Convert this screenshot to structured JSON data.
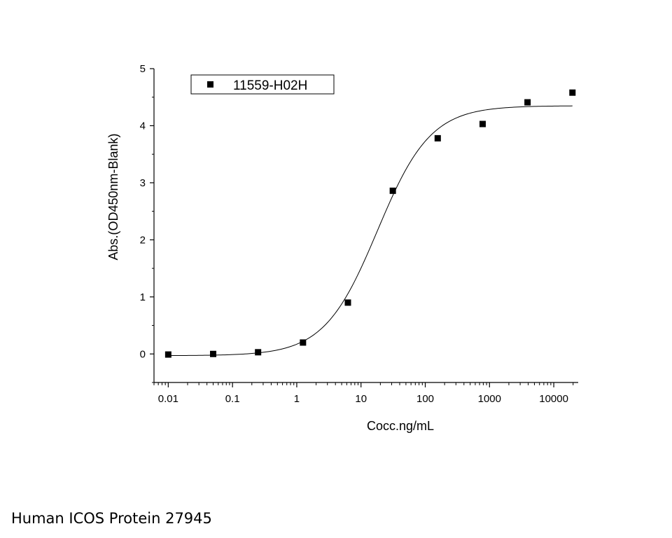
{
  "caption": "Human ICOS Protein 27945",
  "chart_data": {
    "type": "scatter",
    "xlabel": "Cocc.ng/mL",
    "ylabel": "Abs.(OD450nm-Blank)",
    "xscale": "log",
    "xlim": [
      0.006,
      24000
    ],
    "ylim": [
      -0.5,
      5
    ],
    "x_ticks": [
      0.01,
      0.1,
      1,
      10,
      100,
      1000,
      10000
    ],
    "x_tick_labels": [
      "0.01",
      "0.1",
      "1",
      "10",
      "100",
      "1000",
      "10000"
    ],
    "y_ticks": [
      0,
      1,
      2,
      3,
      4,
      5
    ],
    "y_tick_labels": [
      "0",
      "1",
      "2",
      "3",
      "4",
      "5"
    ],
    "grid": false,
    "legend_position": "top-left",
    "series": [
      {
        "name": "11559-H02H",
        "marker": "square",
        "color": "#000000",
        "x": [
          0.01,
          0.05,
          0.25,
          1.25,
          6.25,
          31.25,
          156.25,
          781.25,
          3906.25,
          19531.25
        ],
        "y": [
          -0.01,
          0.0,
          0.03,
          0.2,
          0.9,
          2.86,
          3.78,
          4.03,
          4.41,
          4.58
        ]
      }
    ],
    "fit": {
      "type": "4PL",
      "bottom": -0.03,
      "top": 4.35,
      "ec50": 18,
      "hill": 1.05
    }
  }
}
